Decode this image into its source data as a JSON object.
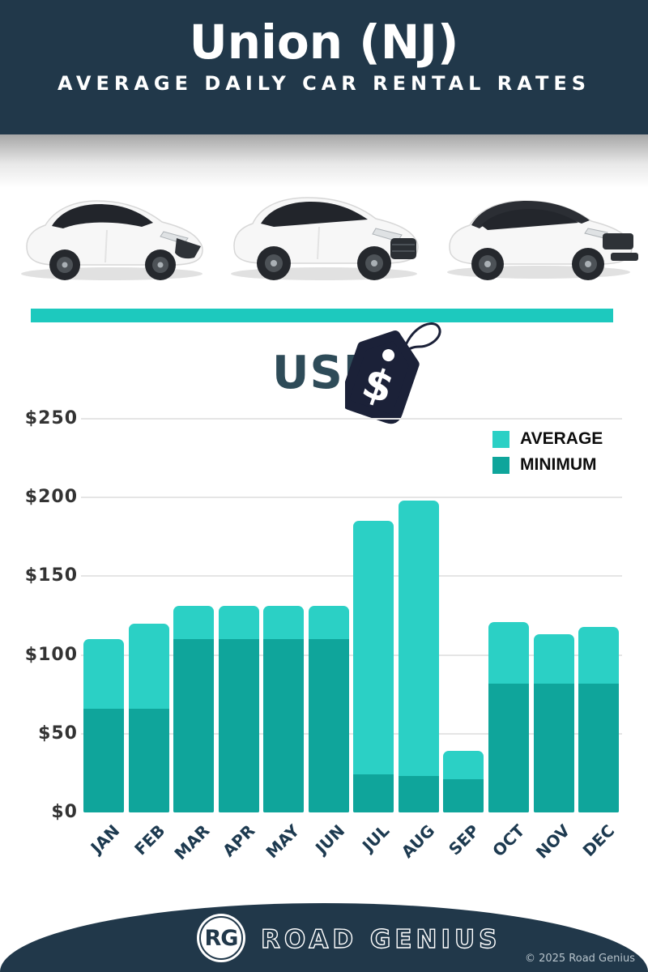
{
  "header": {
    "title": "Union (NJ)",
    "subtitle": "AVERAGE DAILY CAR RENTAL RATES"
  },
  "currency_label": "USD",
  "tag": {
    "symbol": "$"
  },
  "cars": [
    {
      "name": "white-hatchback"
    },
    {
      "name": "white-suv"
    },
    {
      "name": "white-suv-black-roof"
    }
  ],
  "legend": {
    "items": [
      {
        "label": "AVERAGE",
        "color": "#2bd0c5"
      },
      {
        "label": "MINIMUM",
        "color": "#0fa59b"
      }
    ]
  },
  "chart_data": {
    "type": "bar",
    "title": "Union (NJ) Average Daily Car Rental Rates",
    "currency": "USD",
    "categories": [
      "JAN",
      "FEB",
      "MAR",
      "APR",
      "MAY",
      "JUN",
      "JUL",
      "AUG",
      "SEP",
      "OCT",
      "NOV",
      "DEC"
    ],
    "series": [
      {
        "name": "AVERAGE",
        "color": "#2bd0c5",
        "values": [
          110,
          120,
          131,
          131,
          131,
          131,
          185,
          198,
          39,
          121,
          113,
          118
        ]
      },
      {
        "name": "MINIMUM",
        "color": "#0fa59b",
        "values": [
          66,
          66,
          110,
          110,
          110,
          110,
          24,
          23,
          21,
          82,
          82,
          82
        ]
      }
    ],
    "bar_style": "overlaid",
    "xlabel": "",
    "ylabel": "USD",
    "ylim": [
      0,
      250
    ],
    "ytick_step": 50,
    "ytick_prefix": "$",
    "grid": true,
    "legend_position": "top-right"
  },
  "theme": {
    "navy": "#21384a",
    "teal_divider": "#1dc9be",
    "average_teal": "#2bd0c5",
    "minimum_teal": "#0fa59b",
    "tag_navy": "#1b2138",
    "usd_text": "#2e4b58"
  },
  "footer": {
    "logo_initials": "RG",
    "brand": "ROAD GENIUS",
    "copyright": "© 2025 Road Genius"
  }
}
